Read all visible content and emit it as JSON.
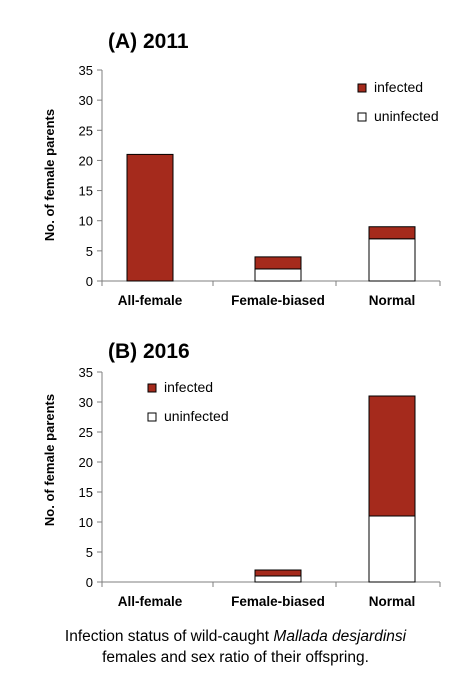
{
  "chart_data": [
    {
      "type": "bar",
      "stacked": true,
      "title": "(A) 2011",
      "xlabel": "",
      "ylabel": "No. of female parents",
      "ylim": [
        0,
        35
      ],
      "yticks": [
        0,
        5,
        10,
        15,
        20,
        25,
        30,
        35
      ],
      "categories": [
        "All-female",
        "Female-biased",
        "Normal"
      ],
      "series": [
        {
          "name": "uninfected",
          "color": "#ffffff",
          "values": [
            0,
            2,
            7
          ]
        },
        {
          "name": "infected",
          "color": "#a52a1c",
          "values": [
            21,
            2,
            2
          ]
        }
      ],
      "legend": {
        "position": "top-right",
        "items": [
          "infected",
          "uninfected"
        ]
      },
      "grid": false
    },
    {
      "type": "bar",
      "stacked": true,
      "title": "(B) 2016",
      "xlabel": "",
      "ylabel": "No. of female parents",
      "ylim": [
        0,
        35
      ],
      "yticks": [
        0,
        5,
        10,
        15,
        20,
        25,
        30,
        35
      ],
      "categories": [
        "All-female",
        "Female-biased",
        "Normal"
      ],
      "series": [
        {
          "name": "uninfected",
          "color": "#ffffff",
          "values": [
            0,
            1,
            11
          ]
        },
        {
          "name": "infected",
          "color": "#a52a1c",
          "values": [
            0,
            1,
            20
          ]
        }
      ],
      "legend": {
        "position": "top-left",
        "items": [
          "infected",
          "uninfected"
        ]
      },
      "grid": false
    }
  ],
  "caption": {
    "prefix": "Infection status of wild-caught ",
    "species": "Mallada desjardinsi",
    "line2": "females and sex ratio of their offspring."
  }
}
